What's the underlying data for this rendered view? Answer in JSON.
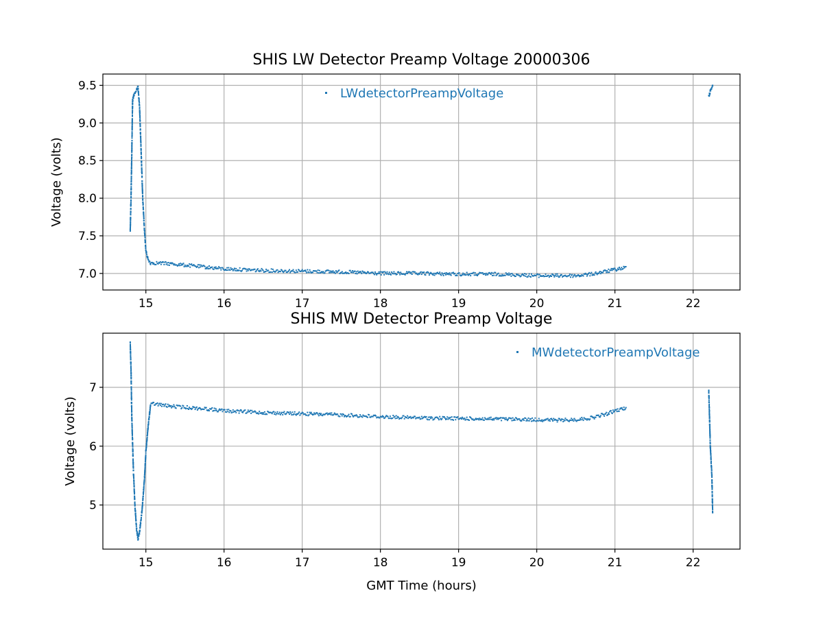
{
  "chart_data": [
    {
      "type": "scatter",
      "title": "SHIS LW Detector Preamp Voltage 20000306",
      "xlabel": "",
      "ylabel": "Voltage (volts)",
      "xlim": [
        14.45,
        22.6
      ],
      "ylim": [
        6.78,
        9.65
      ],
      "xticks": [
        15,
        16,
        17,
        18,
        19,
        20,
        21,
        22
      ],
      "yticks": [
        7.0,
        7.5,
        8.0,
        8.5,
        9.0,
        9.5
      ],
      "ytick_labels": [
        "7.0",
        "7.5",
        "8.0",
        "8.5",
        "9.0",
        "9.5"
      ],
      "grid": true,
      "legend": "upper center",
      "color": "#1f77b4",
      "series": [
        {
          "name": "LWdetectorPreampVoltage",
          "x": [
            14.8,
            14.81,
            14.82,
            14.83,
            14.84,
            14.85,
            14.87,
            14.9,
            14.92,
            14.94,
            14.96,
            14.98,
            15.0,
            15.03,
            15.06,
            15.1,
            15.3,
            15.5,
            15.8,
            16.0,
            16.5,
            17.0,
            17.5,
            18.0,
            18.5,
            19.0,
            19.5,
            20.0,
            20.3,
            20.5,
            20.7,
            20.9,
            21.0,
            21.15,
            22.2,
            22.22,
            22.25
          ],
          "y": [
            7.57,
            8.0,
            8.6,
            9.3,
            9.35,
            9.38,
            9.42,
            9.47,
            9.2,
            8.6,
            8.0,
            7.6,
            7.3,
            7.18,
            7.14,
            7.14,
            7.13,
            7.11,
            7.08,
            7.06,
            7.04,
            7.03,
            7.02,
            7.0,
            7.0,
            6.99,
            6.99,
            6.97,
            6.97,
            6.97,
            6.99,
            7.03,
            7.05,
            7.08,
            9.35,
            9.43,
            9.5
          ]
        }
      ]
    },
    {
      "type": "scatter",
      "title": "SHIS MW Detector Preamp Voltage",
      "xlabel": "GMT Time (hours)",
      "ylabel": "Voltage (volts)",
      "xlim": [
        14.45,
        22.6
      ],
      "ylim": [
        4.25,
        7.92
      ],
      "xticks": [
        15,
        16,
        17,
        18,
        19,
        20,
        21,
        22
      ],
      "yticks": [
        5,
        6,
        7
      ],
      "ytick_labels": [
        "5",
        "6",
        "7"
      ],
      "grid": true,
      "legend": "upper right",
      "color": "#1f77b4",
      "series": [
        {
          "name": "MWdetectorPreampVoltage",
          "x": [
            14.8,
            14.81,
            14.82,
            14.84,
            14.86,
            14.88,
            14.9,
            14.92,
            14.95,
            14.98,
            15.0,
            15.03,
            15.06,
            15.1,
            15.3,
            15.5,
            15.8,
            16.0,
            16.5,
            17.0,
            17.5,
            18.0,
            18.5,
            19.0,
            19.5,
            20.0,
            20.3,
            20.5,
            20.7,
            20.9,
            21.0,
            21.15,
            22.2,
            22.21,
            22.22,
            22.24,
            22.25
          ],
          "y": [
            7.75,
            7.3,
            6.5,
            5.6,
            5.0,
            4.6,
            4.42,
            4.55,
            4.9,
            5.4,
            5.9,
            6.35,
            6.7,
            6.72,
            6.68,
            6.66,
            6.63,
            6.6,
            6.57,
            6.55,
            6.53,
            6.5,
            6.48,
            6.47,
            6.46,
            6.45,
            6.44,
            6.45,
            6.48,
            6.55,
            6.6,
            6.65,
            6.95,
            6.5,
            6.0,
            5.5,
            4.88
          ]
        }
      ]
    }
  ]
}
